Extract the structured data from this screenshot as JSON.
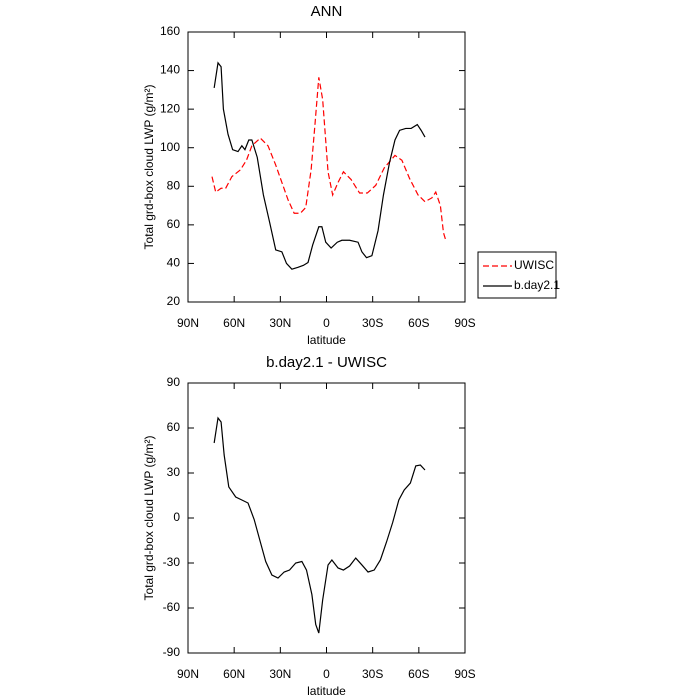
{
  "chart_data": [
    {
      "type": "line",
      "title": "ANN",
      "xlabel": "latitude",
      "ylabel": "Total grd-box cloud LWP (g/m²)",
      "xlim": [
        90,
        -90
      ],
      "xticks": [
        {
          "value": 90,
          "label": "90N"
        },
        {
          "value": 60,
          "label": "60N"
        },
        {
          "value": 30,
          "label": "30N"
        },
        0,
        {
          "value": -30,
          "label": "30S"
        },
        {
          "value": -60,
          "label": "60S"
        },
        {
          "value": -90,
          "label": "90S"
        }
      ],
      "ylim": [
        20,
        160
      ],
      "yticks": [
        20,
        40,
        60,
        80,
        100,
        120,
        140,
        160
      ],
      "legend": "right",
      "series": [
        {
          "name": "UWISC",
          "color": "#ff0000",
          "dash": true,
          "x": [
            74.4,
            72,
            68.5,
            65.5,
            61.5,
            56,
            52,
            48.5,
            43,
            38,
            33,
            29,
            25,
            21,
            17,
            13.5,
            10,
            7.5,
            5,
            2.5,
            -1,
            -4,
            -7.5,
            -11,
            -16,
            -21.5,
            -26.5,
            -32,
            -37.5,
            -44.5,
            -49,
            -54,
            -59.5,
            -64,
            -68.5,
            -71,
            -74,
            -76,
            -77.5
          ],
          "values": [
            85,
            77,
            79,
            79,
            85,
            88.5,
            93.5,
            101,
            105,
            101,
            91,
            82,
            73,
            66,
            66,
            69,
            88.5,
            112,
            136.5,
            125,
            87.5,
            75.5,
            82,
            87.5,
            83.5,
            76.5,
            76.5,
            80.5,
            89.5,
            96,
            93.5,
            84,
            75.5,
            72,
            74,
            77,
            70,
            56,
            52
          ]
        },
        {
          "name": "b.day2.1",
          "color": "#000000",
          "dash": false,
          "x": [
            73,
            70.5,
            68.5,
            67,
            64,
            61,
            57.5,
            55,
            53,
            50.5,
            48.5,
            45,
            41,
            37,
            33,
            29,
            26,
            22.5,
            18.5,
            15,
            12,
            9,
            5,
            3,
            0.5,
            -3,
            -7,
            -10,
            -15,
            -20.5,
            -23,
            -26,
            -29.5,
            -33.5,
            -37,
            -41,
            -44.5,
            -47.5,
            -51.5,
            -55,
            -59,
            -61.5,
            -64
          ],
          "values": [
            131,
            144,
            142,
            120,
            107,
            99,
            98,
            101,
            99,
            104,
            104,
            95,
            75.5,
            61.5,
            47,
            46,
            40,
            37,
            38,
            39,
            40.5,
            49.5,
            59,
            59,
            51,
            48,
            51,
            52,
            52,
            51,
            46,
            43,
            44,
            57,
            75.5,
            92.5,
            104,
            109,
            110,
            110,
            112,
            109,
            105.5
          ]
        }
      ]
    },
    {
      "type": "line",
      "title": "b.day2.1 - UWISC",
      "xlabel": "latitude",
      "ylabel": "Total grd-box cloud LWP (g/m²)",
      "xlim": [
        90,
        -90
      ],
      "xticks": [
        {
          "value": 90,
          "label": "90N"
        },
        {
          "value": 60,
          "label": "60N"
        },
        {
          "value": 30,
          "label": "30N"
        },
        0,
        {
          "value": -30,
          "label": "30S"
        },
        {
          "value": -60,
          "label": "60S"
        },
        {
          "value": -90,
          "label": "90S"
        }
      ],
      "ylim": [
        -90,
        90
      ],
      "yticks": [
        -90,
        -60,
        -30,
        0,
        30,
        60,
        90
      ],
      "series": [
        {
          "color": "#000000",
          "dash": false,
          "x": [
            73,
            70.5,
            68.5,
            66.5,
            63.5,
            59,
            55,
            51,
            47,
            43,
            39.5,
            35.5,
            31.5,
            27.5,
            24,
            20,
            16,
            13,
            9.5,
            7,
            5,
            2.5,
            -1,
            -3.5,
            -7.5,
            -11,
            -15,
            -19,
            -23,
            -27,
            -31,
            -35,
            -39,
            -43,
            -47,
            -50.5,
            -54.5,
            -58,
            -61,
            -64
          ],
          "values": [
            50,
            66.7,
            64,
            42,
            20.7,
            14,
            12,
            10,
            -1,
            -16,
            -29,
            -38,
            -40,
            -36,
            -34.7,
            -30,
            -29,
            -34.7,
            -51,
            -71,
            -76.7,
            -54.7,
            -31.3,
            -28,
            -33.3,
            -34.7,
            -32,
            -26.7,
            -31.3,
            -36,
            -34.7,
            -28,
            -16,
            -3,
            12,
            18.7,
            23.3,
            34.7,
            35.3,
            32
          ]
        }
      ]
    }
  ]
}
